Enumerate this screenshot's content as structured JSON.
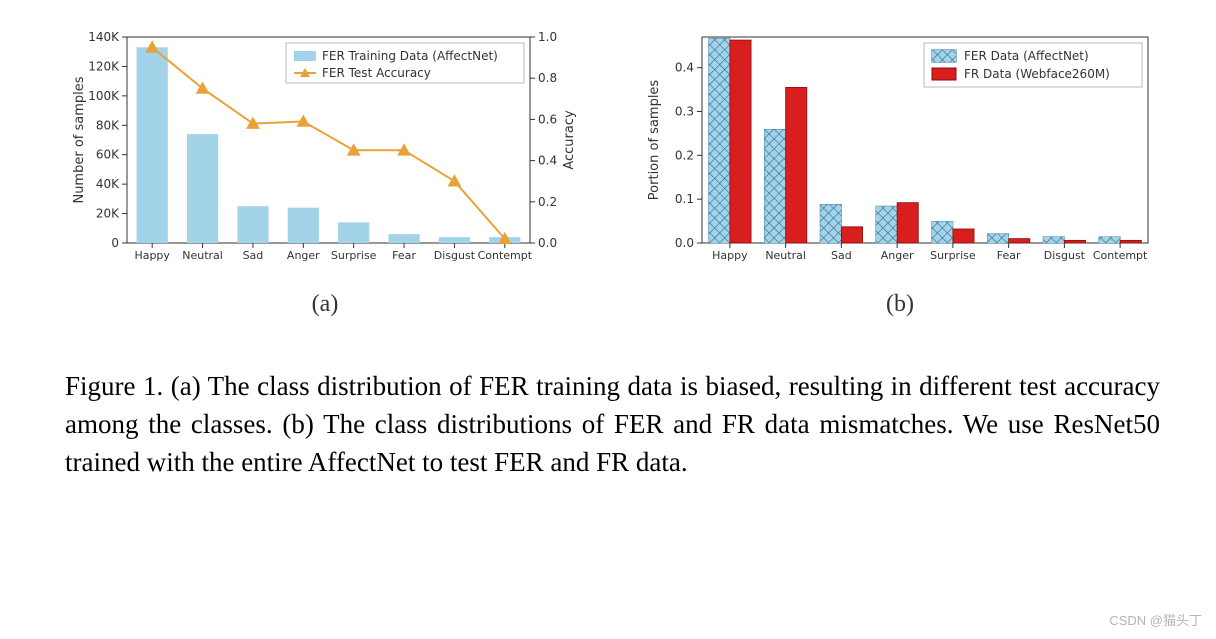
{
  "chart_a": {
    "type": "bar+line",
    "categories": [
      "Happy",
      "Neutral",
      "Sad",
      "Anger",
      "Surprise",
      "Fear",
      "Disgust",
      "Contempt"
    ],
    "bar_values": [
      133000,
      74000,
      25000,
      24000,
      14000,
      6000,
      4000,
      4000
    ],
    "line_values": [
      0.95,
      0.75,
      0.58,
      0.59,
      0.45,
      0.45,
      0.3,
      0.02
    ],
    "ylabel_left": "Number of samples",
    "ylabel_right": "Accuracy",
    "left_ticks": [
      0,
      20000,
      40000,
      60000,
      80000,
      100000,
      120000,
      140000
    ],
    "left_tick_labels": [
      "0",
      "20K",
      "40K",
      "60K",
      "80K",
      "100K",
      "120K",
      "140K"
    ],
    "right_ticks": [
      0.0,
      0.2,
      0.4,
      0.6,
      0.8,
      1.0
    ],
    "right_tick_labels": [
      "0.0",
      "0.2",
      "0.4",
      "0.6",
      "0.8",
      "1.0"
    ],
    "bar_color": "#a3d3e8",
    "bar_width": 0.62,
    "line_color": "#e8a23a",
    "marker": "triangle",
    "marker_size": 6,
    "axis_color": "#333333",
    "legend_bar": "FER Training Data (AffectNet)",
    "legend_line": "FER Test Accuracy",
    "tick_fontsize": 12,
    "label_fontsize": 13,
    "legend_fontsize": 12,
    "sub_label": "(a)"
  },
  "chart_b": {
    "type": "grouped-bar",
    "categories": [
      "Happy",
      "Neutral",
      "Sad",
      "Anger",
      "Surprise",
      "Fear",
      "Disgust",
      "Contempt"
    ],
    "series": [
      {
        "name": "fer",
        "label": "FER Data (AffectNet)",
        "color": "#a3d3e8",
        "hatch": true,
        "edge": "#2b6a8f",
        "values": [
          0.467,
          0.259,
          0.088,
          0.084,
          0.049,
          0.021,
          0.014,
          0.014
        ]
      },
      {
        "name": "fr",
        "label": "FR Data (Webface260M)",
        "color": "#d81e1e",
        "hatch": false,
        "edge": "#8a0d0d",
        "values": [
          0.463,
          0.355,
          0.037,
          0.092,
          0.032,
          0.01,
          0.006,
          0.006
        ]
      }
    ],
    "ylabel": "Portion of samples",
    "yticks": [
      0.0,
      0.1,
      0.2,
      0.3,
      0.4
    ],
    "ytick_labels": [
      "0.0",
      "0.1",
      "0.2",
      "0.3",
      "0.4"
    ],
    "ylim": [
      0.0,
      0.47
    ],
    "bar_width": 0.38,
    "axis_color": "#333333",
    "tick_fontsize": 12,
    "label_fontsize": 13,
    "legend_fontsize": 12,
    "sub_label": "(b)"
  },
  "caption": "Figure 1. (a) The class distribution of FER training data is biased, resulting in different test accuracy among the classes. (b) The class distributions of FER and FR data mismatches. We use ResNet50 trained with the entire AffectNet to test FER and FR data.",
  "watermark": "CSDN @猫头丁",
  "colors": {
    "bg": "#ffffff",
    "axis": "#333333",
    "text": "#333333"
  }
}
